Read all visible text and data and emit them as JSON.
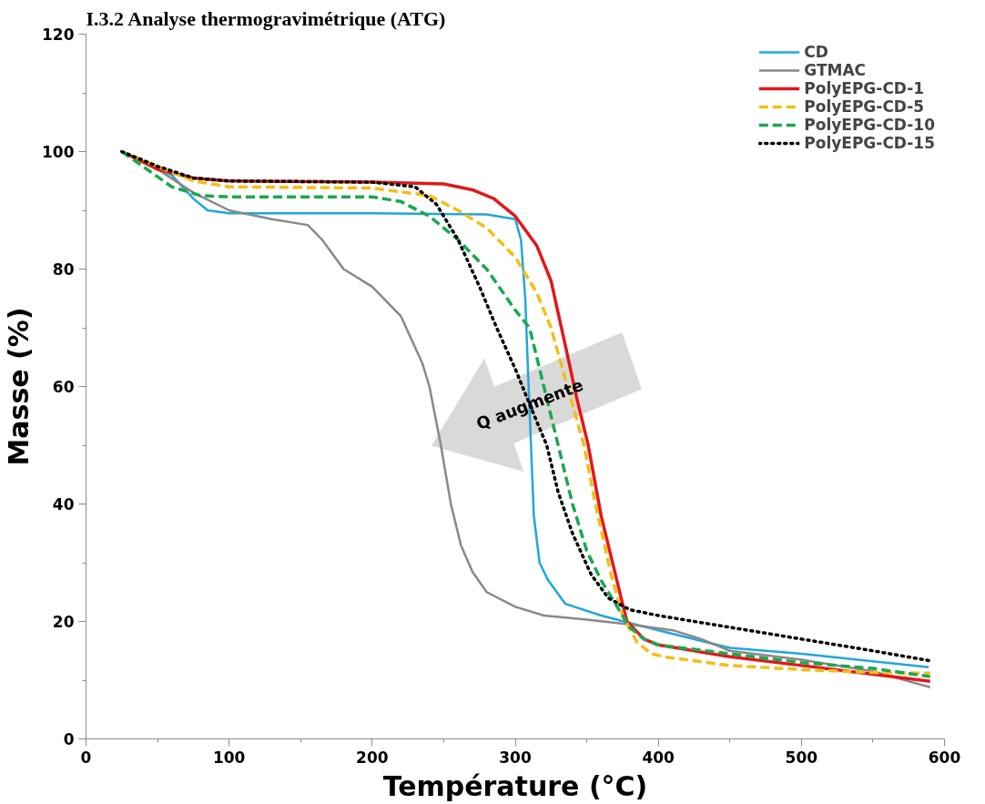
{
  "chart_data": {
    "type": "line",
    "title": "I.3.2        Analyse thermogravimétrique (ATG)",
    "xlabel": "Température (°C)",
    "ylabel": "Masse (%)",
    "xlim": [
      0,
      600
    ],
    "xticks": [
      0,
      100,
      200,
      300,
      400,
      500,
      600
    ],
    "ylim": [
      0,
      120
    ],
    "yticks": [
      0,
      20,
      40,
      60,
      80,
      100,
      120
    ],
    "grid": false,
    "legend": "top right",
    "marker": "none",
    "annotations": [
      {
        "text": "Q augmente",
        "x": 310,
        "y": 57
      }
    ],
    "series": [
      {
        "name": "CD",
        "color": "#21a6dc",
        "line_style": "solid",
        "x": [
          25,
          60,
          75,
          85,
          100,
          200,
          280,
          300,
          304,
          307,
          309,
          311,
          313,
          317,
          323,
          335,
          360,
          400,
          418,
          450,
          500,
          589
        ],
        "values": [
          100,
          96,
          92,
          90,
          89.5,
          89.5,
          89.3,
          88.5,
          85,
          75,
          62,
          50,
          38,
          30,
          27,
          23,
          21,
          18.5,
          17.4,
          15.5,
          14.5,
          12.2
        ]
      },
      {
        "name": "GTMAC",
        "color": "#898989",
        "line_style": "solid",
        "x": [
          25,
          50,
          75,
          100,
          130,
          155,
          165,
          180,
          200,
          220,
          235,
          240,
          248,
          255,
          262,
          270,
          280,
          300,
          320,
          350,
          380,
          410,
          430,
          450,
          500,
          550,
          590
        ],
        "values": [
          100,
          97,
          93,
          90,
          88.5,
          87.5,
          85,
          80,
          77,
          72,
          64,
          60,
          50,
          40,
          33,
          28.5,
          25,
          22.5,
          21,
          20.3,
          19.5,
          18.5,
          17,
          15,
          13.5,
          11.5,
          8.8
        ]
      },
      {
        "name": "PolyEPG-CD-1",
        "color": "#e3171a",
        "line_style": "solid",
        "x": [
          25,
          50,
          75,
          100,
          200,
          250,
          270,
          285,
          300,
          315,
          325,
          335,
          343,
          351,
          360,
          370,
          378,
          390,
          400,
          450,
          500,
          550,
          590
        ],
        "values": [
          100,
          97,
          95.5,
          95,
          94.8,
          94.5,
          93.5,
          92,
          89,
          84,
          78,
          67,
          58,
          50,
          38,
          28,
          20,
          17,
          16,
          14,
          12.5,
          11,
          9.8
        ]
      },
      {
        "name": "PolyEPG-CD-5",
        "color": "#f5bd16",
        "line_style": "dashed",
        "x": [
          25,
          75,
          100,
          200,
          240,
          260,
          280,
          300,
          315,
          325,
          333,
          340,
          348,
          356,
          367,
          375,
          385,
          395,
          406,
          450,
          500,
          550,
          590
        ],
        "values": [
          100,
          95,
          94,
          93.8,
          92.5,
          90,
          87,
          82,
          76,
          70,
          63,
          57,
          50,
          40,
          28,
          21,
          16.5,
          14.5,
          13.9,
          12.5,
          11.8,
          11.3,
          11.2
        ]
      },
      {
        "name": "PolyEPG-CD-10",
        "color": "#1aa850",
        "line_style": "dashed",
        "x": [
          25,
          60,
          80,
          100,
          200,
          220,
          240,
          260,
          280,
          300,
          310,
          318,
          325,
          332,
          340,
          350,
          360,
          370,
          380,
          390,
          400,
          450,
          500,
          550,
          590
        ],
        "values": [
          100,
          94,
          92.5,
          92.3,
          92.3,
          91.5,
          89,
          85,
          80,
          73,
          70,
          62,
          55,
          48,
          40,
          32,
          27,
          23,
          19,
          17,
          16,
          14.5,
          13,
          12,
          10.6
        ]
      },
      {
        "name": "PolyEPG-CD-15",
        "color": "#000000",
        "line_style": "dotted",
        "x": [
          25,
          50,
          75,
          100,
          200,
          230,
          245,
          260,
          275,
          287,
          300,
          310,
          322,
          330,
          340,
          353,
          365,
          380,
          400,
          450,
          500,
          550,
          590
        ],
        "values": [
          100,
          97.5,
          95.5,
          95,
          94.8,
          94,
          91,
          85,
          77,
          70,
          63,
          57,
          50,
          42,
          35,
          28,
          24,
          22,
          21,
          19,
          17,
          15,
          13.3
        ]
      }
    ]
  }
}
